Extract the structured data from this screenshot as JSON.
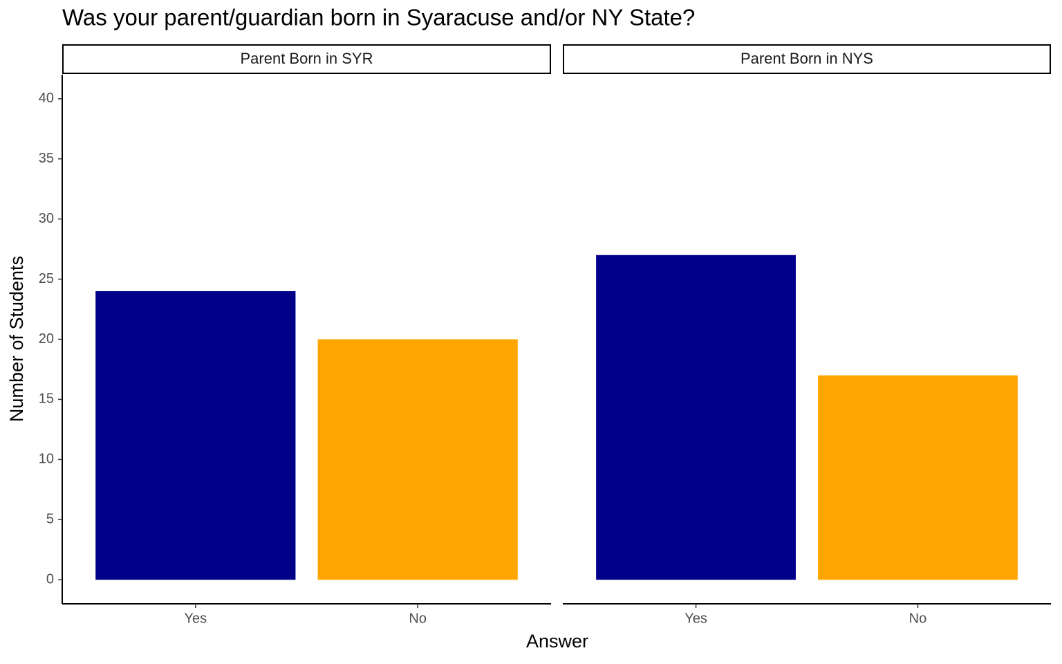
{
  "chart_data": {
    "type": "bar",
    "title": "Was your parent/guardian born in Syaracuse and/or NY State?",
    "xlabel": "Answer",
    "ylabel": "Number of Students",
    "ylim": [
      -2,
      42
    ],
    "yticks": [
      0,
      5,
      10,
      15,
      20,
      25,
      30,
      35,
      40
    ],
    "facets": [
      {
        "title": "Parent Born in SYR",
        "categories": [
          "Yes",
          "No"
        ],
        "values": [
          24,
          20
        ],
        "colors": [
          "#00008b",
          "#ffa500"
        ]
      },
      {
        "title": "Parent Born in NYS",
        "categories": [
          "Yes",
          "No"
        ],
        "values": [
          27,
          17
        ],
        "colors": [
          "#00008b",
          "#ffa500"
        ]
      }
    ]
  }
}
